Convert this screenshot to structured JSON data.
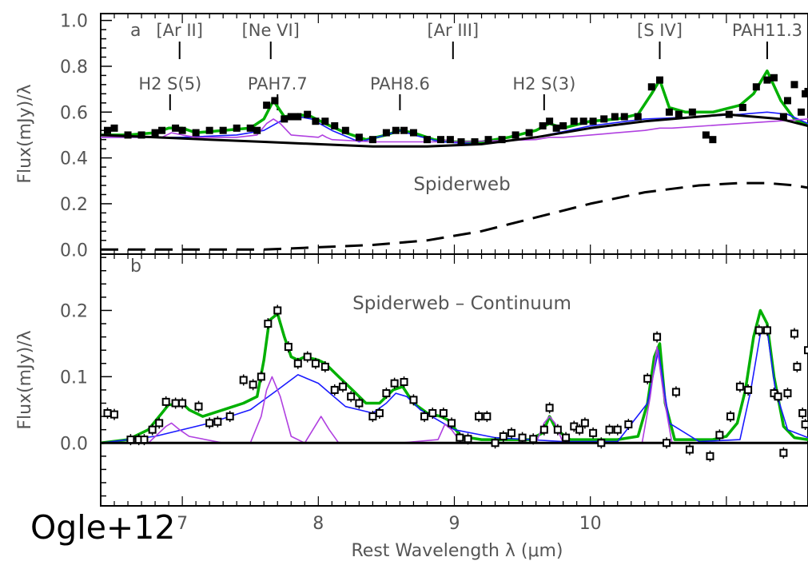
{
  "credit": "Ogle+12",
  "xlabel": "Rest Wavelength λ (μm)",
  "chart_data": [
    {
      "type": "line",
      "panel_letter": "a",
      "annotation": "Spiderweb",
      "ylabel": "Flux(mJy)/λ",
      "xlim": [
        6.4,
        11.6
      ],
      "ylim": [
        -0.02,
        1.03
      ],
      "x_ticks": [
        7,
        8,
        9,
        10
      ],
      "y_ticks": [
        0.0,
        0.2,
        0.4,
        0.6,
        0.8,
        1.0
      ],
      "y_tick_labels": [
        "0.0",
        "0.2",
        "0.4",
        "0.6",
        "0.8",
        "1.0"
      ],
      "line_labels": [
        {
          "label": "[Ar II]",
          "x": 6.98,
          "row": 1
        },
        {
          "label": "[Ne VI]",
          "x": 7.65,
          "row": 1
        },
        {
          "label": "[Ar III]",
          "x": 8.99,
          "row": 1
        },
        {
          "label": "[S IV]",
          "x": 10.51,
          "row": 1
        },
        {
          "label": "PAH11.3",
          "x": 11.3,
          "row": 1
        },
        {
          "label": "H2 S(5)",
          "x": 6.91,
          "row": 2
        },
        {
          "label": "PAH7.7",
          "x": 7.7,
          "row": 2
        },
        {
          "label": "PAH8.6",
          "x": 8.6,
          "row": 2
        },
        {
          "label": "H2 S(3)",
          "x": 9.66,
          "row": 2
        }
      ],
      "data_points": [
        [
          6.45,
          0.52
        ],
        [
          6.5,
          0.53
        ],
        [
          6.6,
          0.5
        ],
        [
          6.7,
          0.5
        ],
        [
          6.8,
          0.51
        ],
        [
          6.85,
          0.52
        ],
        [
          6.95,
          0.53
        ],
        [
          7.0,
          0.52
        ],
        [
          7.1,
          0.51
        ],
        [
          7.2,
          0.52
        ],
        [
          7.3,
          0.52
        ],
        [
          7.4,
          0.53
        ],
        [
          7.5,
          0.53
        ],
        [
          7.55,
          0.52
        ],
        [
          7.62,
          0.63
        ],
        [
          7.68,
          0.65
        ],
        [
          7.75,
          0.57
        ],
        [
          7.8,
          0.58
        ],
        [
          7.85,
          0.58
        ],
        [
          7.92,
          0.59
        ],
        [
          7.98,
          0.56
        ],
        [
          8.05,
          0.56
        ],
        [
          8.12,
          0.54
        ],
        [
          8.2,
          0.52
        ],
        [
          8.3,
          0.49
        ],
        [
          8.4,
          0.48
        ],
        [
          8.5,
          0.51
        ],
        [
          8.57,
          0.52
        ],
        [
          8.63,
          0.52
        ],
        [
          8.7,
          0.51
        ],
        [
          8.8,
          0.48
        ],
        [
          8.9,
          0.48
        ],
        [
          8.97,
          0.48
        ],
        [
          9.05,
          0.47
        ],
        [
          9.15,
          0.47
        ],
        [
          9.25,
          0.48
        ],
        [
          9.35,
          0.48
        ],
        [
          9.45,
          0.5
        ],
        [
          9.55,
          0.51
        ],
        [
          9.65,
          0.54
        ],
        [
          9.7,
          0.56
        ],
        [
          9.75,
          0.53
        ],
        [
          9.8,
          0.54
        ],
        [
          9.88,
          0.56
        ],
        [
          9.95,
          0.56
        ],
        [
          10.02,
          0.56
        ],
        [
          10.1,
          0.57
        ],
        [
          10.18,
          0.58
        ],
        [
          10.25,
          0.58
        ],
        [
          10.35,
          0.58
        ],
        [
          10.45,
          0.71
        ],
        [
          10.51,
          0.74
        ],
        [
          10.58,
          0.6
        ],
        [
          10.65,
          0.59
        ],
        [
          10.75,
          0.6
        ],
        [
          10.85,
          0.5
        ],
        [
          10.9,
          0.48
        ],
        [
          11.02,
          0.59
        ],
        [
          11.12,
          0.62
        ],
        [
          11.22,
          0.71
        ],
        [
          11.3,
          0.74
        ],
        [
          11.35,
          0.75
        ],
        [
          11.42,
          0.58
        ],
        [
          11.45,
          0.65
        ],
        [
          11.5,
          0.72
        ],
        [
          11.55,
          0.6
        ],
        [
          11.58,
          0.68
        ],
        [
          11.6,
          0.69
        ]
      ],
      "series": [
        {
          "name": "",
          "color": "#00b000",
          "x": [
            6.4,
            6.6,
            6.8,
            6.9,
            7.0,
            7.1,
            7.3,
            7.5,
            7.6,
            7.67,
            7.75,
            7.85,
            7.95,
            8.05,
            8.2,
            8.35,
            8.5,
            8.6,
            8.7,
            8.85,
            9.0,
            9.2,
            9.4,
            9.6,
            9.7,
            9.8,
            10.0,
            10.2,
            10.35,
            10.45,
            10.51,
            10.58,
            10.7,
            10.9,
            11.1,
            11.2,
            11.3,
            11.4,
            11.5,
            11.6
          ],
          "y": [
            0.5,
            0.5,
            0.51,
            0.53,
            0.53,
            0.51,
            0.52,
            0.53,
            0.57,
            0.65,
            0.58,
            0.59,
            0.58,
            0.55,
            0.51,
            0.48,
            0.5,
            0.52,
            0.51,
            0.48,
            0.47,
            0.47,
            0.49,
            0.52,
            0.55,
            0.53,
            0.56,
            0.57,
            0.59,
            0.68,
            0.74,
            0.62,
            0.6,
            0.6,
            0.63,
            0.68,
            0.78,
            0.65,
            0.57,
            0.54
          ]
        },
        {
          "name": "",
          "color": "#1a1aff",
          "x": [
            6.4,
            7.0,
            7.4,
            7.6,
            7.75,
            7.85,
            7.95,
            8.1,
            8.3,
            8.5,
            8.6,
            8.7,
            8.9,
            9.2,
            9.6,
            10.0,
            10.4,
            10.8,
            11.1,
            11.3,
            11.45,
            11.6
          ],
          "y": [
            0.49,
            0.49,
            0.5,
            0.52,
            0.57,
            0.58,
            0.57,
            0.52,
            0.47,
            0.5,
            0.52,
            0.5,
            0.47,
            0.46,
            0.49,
            0.54,
            0.57,
            0.58,
            0.59,
            0.6,
            0.59,
            0.55
          ]
        },
        {
          "name": "",
          "color": "#b040e0",
          "x": [
            6.4,
            6.85,
            6.92,
            7.0,
            7.1,
            7.4,
            7.55,
            7.62,
            7.67,
            7.72,
            7.8,
            8.0,
            8.03,
            8.06,
            8.1,
            8.4,
            8.9,
            8.95,
            9.0,
            9.6,
            9.7,
            9.8,
            10.4,
            10.51,
            10.6,
            11.6
          ],
          "y": [
            0.49,
            0.49,
            0.51,
            0.5,
            0.49,
            0.49,
            0.5,
            0.55,
            0.57,
            0.55,
            0.5,
            0.49,
            0.5,
            0.49,
            0.48,
            0.47,
            0.47,
            0.48,
            0.47,
            0.48,
            0.49,
            0.49,
            0.52,
            0.53,
            0.53,
            0.57
          ]
        },
        {
          "name": "",
          "color": "#000000",
          "x": [
            6.4,
            6.8,
            7.2,
            7.6,
            8.0,
            8.4,
            8.8,
            9.2,
            9.6,
            10.0,
            10.4,
            10.8,
            11.0,
            11.2,
            11.4,
            11.6
          ],
          "y": [
            0.5,
            0.49,
            0.48,
            0.47,
            0.46,
            0.45,
            0.45,
            0.46,
            0.49,
            0.53,
            0.56,
            0.58,
            0.59,
            0.58,
            0.57,
            0.54
          ]
        },
        {
          "name": "",
          "color": "#000000",
          "dashed": true,
          "x": [
            6.4,
            7.0,
            7.6,
            8.0,
            8.4,
            8.8,
            9.2,
            9.6,
            10.0,
            10.4,
            10.8,
            11.1,
            11.3,
            11.5,
            11.6
          ],
          "y": [
            0.0,
            0.0,
            0.0,
            0.01,
            0.02,
            0.04,
            0.08,
            0.14,
            0.2,
            0.25,
            0.28,
            0.29,
            0.29,
            0.28,
            0.27
          ]
        }
      ]
    },
    {
      "type": "line",
      "panel_letter": "b",
      "annotation": "Spiderweb – Continuum",
      "ylabel": "Flux(mJy)/λ",
      "xlim": [
        6.4,
        11.6
      ],
      "ylim": [
        -0.095,
        0.285
      ],
      "x_ticks": [
        7,
        8,
        9,
        10
      ],
      "y_ticks": [
        0.0,
        0.1,
        0.2
      ],
      "y_tick_labels": [
        "0.0",
        "0.1",
        "0.2"
      ],
      "data_points": [
        [
          6.45,
          0.045
        ],
        [
          6.5,
          0.043
        ],
        [
          6.62,
          0.005
        ],
        [
          6.68,
          0.005
        ],
        [
          6.72,
          0.005
        ],
        [
          6.78,
          0.02
        ],
        [
          6.83,
          0.03
        ],
        [
          6.88,
          0.062
        ],
        [
          6.95,
          0.06
        ],
        [
          7.0,
          0.06
        ],
        [
          7.12,
          0.055
        ],
        [
          7.2,
          0.03
        ],
        [
          7.26,
          0.032
        ],
        [
          7.35,
          0.04
        ],
        [
          7.45,
          0.095
        ],
        [
          7.52,
          0.088
        ],
        [
          7.58,
          0.1
        ],
        [
          7.63,
          0.18
        ],
        [
          7.7,
          0.2
        ],
        [
          7.78,
          0.145
        ],
        [
          7.85,
          0.12
        ],
        [
          7.92,
          0.13
        ],
        [
          7.98,
          0.12
        ],
        [
          8.05,
          0.115
        ],
        [
          8.12,
          0.08
        ],
        [
          8.18,
          0.085
        ],
        [
          8.24,
          0.07
        ],
        [
          8.3,
          0.06
        ],
        [
          8.4,
          0.04
        ],
        [
          8.45,
          0.045
        ],
        [
          8.5,
          0.075
        ],
        [
          8.56,
          0.09
        ],
        [
          8.63,
          0.092
        ],
        [
          8.7,
          0.065
        ],
        [
          8.78,
          0.04
        ],
        [
          8.84,
          0.045
        ],
        [
          8.92,
          0.045
        ],
        [
          8.98,
          0.03
        ],
        [
          9.04,
          0.008
        ],
        [
          9.1,
          0.006
        ],
        [
          9.18,
          0.04
        ],
        [
          9.24,
          0.04
        ],
        [
          9.3,
          0.0
        ],
        [
          9.36,
          0.01
        ],
        [
          9.42,
          0.015
        ],
        [
          9.5,
          0.008
        ],
        [
          9.58,
          0.006
        ],
        [
          9.66,
          0.02
        ],
        [
          9.7,
          0.053
        ],
        [
          9.76,
          0.02
        ],
        [
          9.82,
          0.008
        ],
        [
          9.88,
          0.025
        ],
        [
          9.92,
          0.02
        ],
        [
          9.96,
          0.03
        ],
        [
          10.02,
          0.015
        ],
        [
          10.08,
          0.0
        ],
        [
          10.14,
          0.02
        ],
        [
          10.2,
          0.02
        ],
        [
          10.28,
          0.028
        ],
        [
          10.42,
          0.097
        ],
        [
          10.49,
          0.16
        ],
        [
          10.56,
          0.0
        ],
        [
          10.63,
          0.077
        ],
        [
          10.73,
          -0.01
        ],
        [
          10.84,
          -0.1
        ],
        [
          10.88,
          -0.02
        ],
        [
          10.95,
          0.012
        ],
        [
          11.03,
          0.04
        ],
        [
          11.1,
          0.085
        ],
        [
          11.16,
          0.08
        ],
        [
          11.24,
          0.17
        ],
        [
          11.3,
          0.17
        ],
        [
          11.35,
          0.075
        ],
        [
          11.38,
          0.07
        ],
        [
          11.42,
          -0.015
        ],
        [
          11.45,
          0.075
        ],
        [
          11.5,
          0.165
        ],
        [
          11.52,
          0.115
        ],
        [
          11.56,
          0.045
        ],
        [
          11.58,
          0.028
        ],
        [
          11.6,
          0.14
        ],
        [
          11.62,
          0.055
        ]
      ],
      "series": [
        {
          "name": "",
          "color": "#00b000",
          "x": [
            6.4,
            6.6,
            6.75,
            6.85,
            6.9,
            6.95,
            7.0,
            7.05,
            7.15,
            7.3,
            7.45,
            7.55,
            7.6,
            7.64,
            7.7,
            7.75,
            7.8,
            7.85,
            7.9,
            8.0,
            8.05,
            8.15,
            8.25,
            8.35,
            8.45,
            8.55,
            8.62,
            8.7,
            8.8,
            8.9,
            8.95,
            9.05,
            9.2,
            9.4,
            9.55,
            9.65,
            9.7,
            9.75,
            9.85,
            10.0,
            10.2,
            10.35,
            10.42,
            10.47,
            10.51,
            10.55,
            10.62,
            10.7,
            10.9,
            11.0,
            11.08,
            11.14,
            11.2,
            11.25,
            11.3,
            11.35,
            11.42,
            11.5,
            11.6
          ],
          "y": [
            0.0,
            0.005,
            0.02,
            0.045,
            0.058,
            0.057,
            0.06,
            0.05,
            0.04,
            0.05,
            0.06,
            0.07,
            0.125,
            0.185,
            0.195,
            0.16,
            0.13,
            0.125,
            0.13,
            0.125,
            0.12,
            0.1,
            0.08,
            0.06,
            0.06,
            0.08,
            0.085,
            0.06,
            0.045,
            0.04,
            0.035,
            0.01,
            0.005,
            0.005,
            0.005,
            0.015,
            0.04,
            0.02,
            0.005,
            0.005,
            0.005,
            0.01,
            0.06,
            0.13,
            0.15,
            0.06,
            0.005,
            0.005,
            0.005,
            0.01,
            0.03,
            0.08,
            0.16,
            0.2,
            0.18,
            0.1,
            0.025,
            0.008,
            0.005
          ]
        },
        {
          "name": "",
          "color": "#1a1aff",
          "x": [
            6.4,
            6.8,
            7.2,
            7.5,
            7.7,
            7.85,
            8.0,
            8.2,
            8.4,
            8.5,
            8.57,
            8.65,
            8.75,
            9.0,
            9.3,
            9.8,
            10.2,
            10.42,
            10.5,
            10.58,
            10.8,
            11.1,
            11.18,
            11.25,
            11.3,
            11.36,
            11.45,
            11.6
          ],
          "y": [
            0.0,
            0.01,
            0.03,
            0.05,
            0.08,
            0.103,
            0.09,
            0.055,
            0.045,
            0.06,
            0.075,
            0.07,
            0.05,
            0.02,
            0.008,
            0.002,
            0.002,
            0.06,
            0.14,
            0.03,
            0.002,
            0.005,
            0.08,
            0.165,
            0.17,
            0.08,
            0.02,
            0.008
          ]
        },
        {
          "name": "",
          "color": "#b040e0",
          "x": [
            6.4,
            6.75,
            6.88,
            6.92,
            6.98,
            7.05,
            7.3,
            7.5,
            7.58,
            7.62,
            7.66,
            7.72,
            7.8,
            7.9,
            7.96,
            8.02,
            8.08,
            8.15,
            8.6,
            8.88,
            8.93,
            8.98,
            9.05,
            9.6,
            9.66,
            9.7,
            9.74,
            9.8,
            10.38,
            10.44,
            10.49,
            10.54,
            10.6,
            11.6
          ],
          "y": [
            0.0,
            0.0,
            0.025,
            0.03,
            0.02,
            0.01,
            0.0,
            0.0,
            0.04,
            0.08,
            0.1,
            0.07,
            0.01,
            0.0,
            0.02,
            0.04,
            0.02,
            0.0,
            0.0,
            0.005,
            0.028,
            0.02,
            0.0,
            0.0,
            0.03,
            0.04,
            0.03,
            0.0,
            0.0,
            0.07,
            0.145,
            0.07,
            0.0,
            0.0
          ]
        },
        {
          "name": "",
          "color": "#000000",
          "x": [
            6.4,
            11.6
          ],
          "y": [
            0.0,
            0.0
          ]
        }
      ]
    }
  ]
}
